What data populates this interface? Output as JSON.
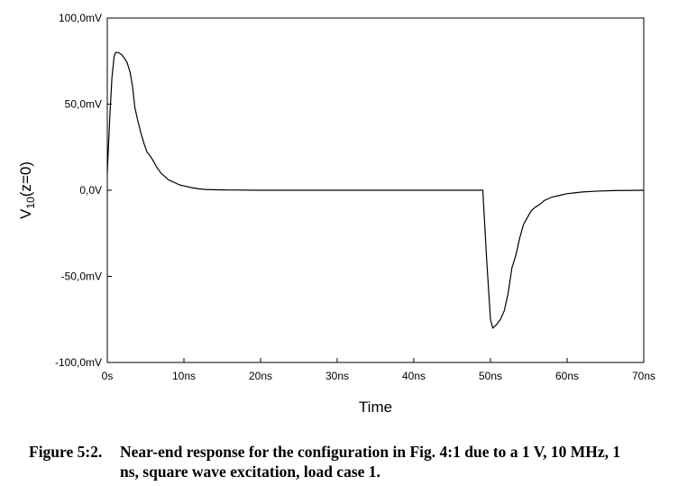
{
  "caption": {
    "label": "Figure 5:2.",
    "text": "Near-end response for the configuration in Fig. 4:1 due to a 1 V, 10 MHz, 1 ns, square wave excitation, load case 1."
  },
  "chart_data": {
    "type": "line",
    "xlabel": "Time",
    "ylabel_main": "V",
    "ylabel_sub": "10",
    "ylabel_rest": "(z=0)",
    "xlim": [
      0,
      70
    ],
    "ylim": [
      -100,
      100
    ],
    "x_unit": "ns",
    "y_unit": "mV",
    "x_ticks": [
      0,
      10,
      20,
      30,
      40,
      50,
      60,
      70
    ],
    "x_tick_labels": [
      "0s",
      "10ns",
      "20ns",
      "30ns",
      "40ns",
      "50ns",
      "60ns",
      "70ns"
    ],
    "y_ticks": [
      100,
      50,
      0,
      -50,
      -100
    ],
    "y_tick_labels": [
      "100,0mV",
      "50,0mV",
      "0,0V",
      "-50,0mV",
      "-100,0mV"
    ],
    "grid": false,
    "series": [
      {
        "x": [
          0,
          0.3,
          0.6,
          0.9,
          1.1,
          1.4,
          1.8,
          2.2,
          2.6,
          3.0,
          3.3,
          3.6,
          4.0,
          4.4,
          4.8,
          5.2,
          5.6,
          6.0,
          6.5,
          7.0,
          7.5,
          8.0,
          8.5,
          9.0,
          9.5,
          10.0,
          11.0,
          12.0,
          13.0,
          15.0,
          20.0,
          30.0,
          40.0,
          48.0,
          49.0,
          49.5,
          50.0,
          50.3,
          50.8,
          51.3,
          51.8,
          52.3,
          52.8,
          53.3,
          53.8,
          54.3,
          54.8,
          55.3,
          55.8,
          56.5,
          57.0,
          58.0,
          59.0,
          60.0,
          62.0,
          64.0,
          66.0,
          70.0
        ],
        "y": [
          10,
          40,
          65,
          78,
          80,
          80,
          79,
          77,
          74,
          68,
          60,
          48,
          40,
          33,
          27,
          22,
          20,
          17,
          13,
          10,
          8,
          6,
          5,
          4,
          3,
          2.5,
          1.5,
          0.8,
          0.4,
          0.2,
          0,
          0,
          0,
          0,
          0,
          -40,
          -75,
          -80,
          -78,
          -75,
          -70,
          -60,
          -45,
          -38,
          -28,
          -20,
          -16,
          -12,
          -10,
          -8,
          -6,
          -4,
          -3,
          -2,
          -1,
          -0.5,
          -0.2,
          0
        ]
      }
    ]
  }
}
